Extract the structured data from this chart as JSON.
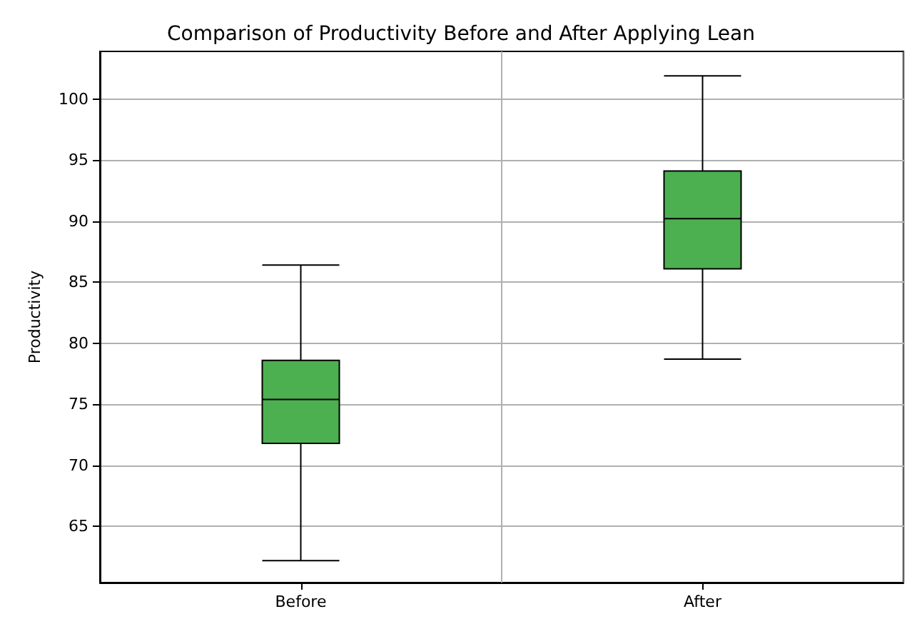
{
  "chart_data": {
    "type": "box",
    "title": "Comparison of Productivity Before and After Applying Lean",
    "ylabel": "Productivity",
    "categories": [
      "Before",
      "After"
    ],
    "boxes": [
      {
        "low": 62.2,
        "q1": 71.8,
        "median": 75.4,
        "q3": 78.6,
        "high": 86.4
      },
      {
        "low": 78.7,
        "q1": 86.1,
        "median": 90.2,
        "q3": 94.1,
        "high": 101.9
      }
    ],
    "color": "#4caf50",
    "ylim": [
      60.4,
      103.9
    ],
    "yticks": [
      65,
      70,
      75,
      80,
      85,
      90,
      95,
      100
    ],
    "grid": true
  }
}
